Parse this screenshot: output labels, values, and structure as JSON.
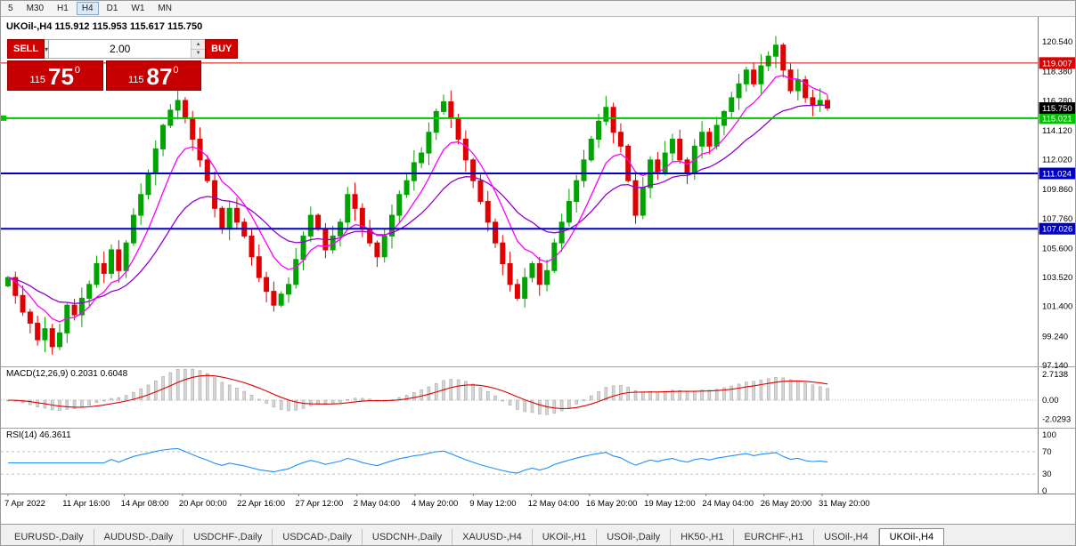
{
  "toolbar": {
    "timeframes": [
      "5",
      "M30",
      "H1",
      "H4",
      "D1",
      "W1",
      "MN"
    ],
    "active": "H4"
  },
  "chart": {
    "title": "UKOil-,H4 115.912 115.953 115.617 115.750",
    "symbol": "UKOil-,H4",
    "ohlc": {
      "open": "115.912",
      "high": "115.953",
      "low": "115.617",
      "close": "115.750"
    },
    "closes": [
      103.5,
      102.2,
      101.0,
      100.2,
      99.0,
      99.8,
      98.5,
      99.5,
      101.5,
      100.8,
      102.0,
      103.0,
      104.5,
      103.8,
      105.5,
      104.0,
      106.0,
      108.0,
      109.5,
      111.0,
      112.8,
      114.5,
      115.6,
      116.3,
      115.0,
      113.5,
      112.0,
      110.5,
      108.5,
      107.0,
      108.5,
      107.5,
      106.5,
      105.0,
      103.5,
      102.5,
      101.5,
      102.3,
      103.0,
      104.8,
      106.5,
      108.0,
      107.0,
      105.5,
      106.5,
      107.5,
      109.5,
      108.5,
      107.0,
      106.0,
      105.0,
      106.5,
      108.0,
      109.5,
      110.5,
      111.8,
      112.5,
      114.0,
      115.5,
      116.2,
      115.0,
      113.5,
      112.0,
      110.5,
      109.0,
      107.5,
      106.0,
      104.5,
      103.0,
      102.0,
      103.5,
      104.5,
      103.0,
      104.0,
      106.0,
      107.5,
      109.0,
      110.5,
      112.0,
      113.5,
      114.8,
      115.8,
      114.0,
      113.0,
      110.5,
      108.0,
      110.0,
      112.0,
      111.0,
      112.5,
      113.5,
      112.0,
      111.0,
      113.0,
      114.0,
      113.0,
      114.5,
      115.5,
      116.5,
      117.5,
      118.5,
      117.5,
      118.8,
      119.5,
      120.3,
      118.5,
      117.0,
      117.8,
      116.5,
      116.0,
      116.3,
      115.75
    ],
    "price_axis_ticks": [
      "120.540",
      "118.380",
      "116.280",
      "114.120",
      "112.020",
      "109.860",
      "107.760",
      "105.600",
      "103.520",
      "101.400",
      "99.240",
      "97.140"
    ],
    "lines": [
      {
        "price": 119.007,
        "label": "119.007",
        "color": "#dd0000",
        "width": 1
      },
      {
        "price": 115.021,
        "label": "115.021",
        "color": "#00c400",
        "width": 2
      },
      {
        "price": 111.024,
        "label": "111.024",
        "color": "#0000c4",
        "width": 2
      },
      {
        "price": 107.026,
        "label": "107.026",
        "color": "#0000c4",
        "width": 2
      }
    ],
    "current_price": {
      "value": 115.75,
      "label": "115.750",
      "bg": "#000000"
    },
    "time_ticks": [
      "7 Apr 2022",
      "11 Apr 16:00",
      "14 Apr 08:00",
      "20 Apr 00:00",
      "22 Apr 16:00",
      "27 Apr 12:00",
      "2 May 04:00",
      "4 May 20:00",
      "9 May 12:00",
      "12 May 04:00",
      "16 May 20:00",
      "19 May 12:00",
      "24 May 04:00",
      "26 May 20:00",
      "31 May 20:00"
    ]
  },
  "indicators": {
    "macd": {
      "label": "MACD(12,26,9) 0.2031 0.6048",
      "values": [
        "0.2031",
        "0.6048"
      ],
      "ticks": [
        {
          "label": "2.7138",
          "value": 2.7138
        },
        {
          "label": "0.00",
          "value": 0
        },
        {
          "label": "-2.0293",
          "value": -2.0293
        }
      ]
    },
    "rsi": {
      "label": "RSI(14) 46.3611",
      "value": "46.3611",
      "ticks": [
        {
          "label": "100",
          "value": 100
        },
        {
          "label": "70",
          "value": 70
        },
        {
          "label": "30",
          "value": 30
        },
        {
          "label": "0",
          "value": 0
        }
      ],
      "levels": [
        70,
        30
      ]
    }
  },
  "trade_panel": {
    "sell_label": "SELL",
    "buy_label": "BUY",
    "volume": "2.00",
    "sell_price": {
      "prefix": "115",
      "big": "75",
      "sup": "0"
    },
    "buy_price": {
      "prefix": "115",
      "big": "87",
      "sup": "0"
    }
  },
  "tabs": {
    "items": [
      "EURUSD-,Daily",
      "AUDUSD-,Daily",
      "USDCHF-,Daily",
      "USDCAD-,Daily",
      "USDCNH-,Daily",
      "XAUUSD-,H4",
      "UKOil-,H1",
      "USOil-,Daily",
      "HK50-,H1",
      "EURCHF-,H1",
      "USOil-,H4",
      "UKOil-,H4"
    ],
    "active": "UKOil-,H4"
  },
  "colors": {
    "up_candle": "#00a400",
    "down_candle": "#e00000",
    "ma_fast": "#ff00ff",
    "ma_slow": "#9400d3",
    "macd_hist_fill": "#d6d6d6",
    "macd_hist_stroke": "#9e9e9e",
    "macd_signal": "#dd0000",
    "rsi_line": "#1e90ff",
    "axis_text": "#000000"
  }
}
